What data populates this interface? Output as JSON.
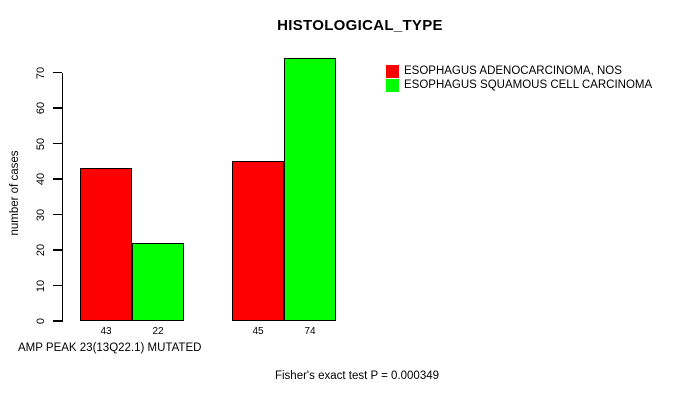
{
  "page": {
    "background": "#FFFFFF",
    "text_color": "#000000"
  },
  "chart_data": {
    "type": "bar",
    "title": "HISTOLOGICAL_TYPE",
    "ylabel": "number of cases",
    "xlabel": "AMP PEAK 23(13Q22.1) MUTATED",
    "annotation": "Fisher's exact test P = 0.000349",
    "grid": false,
    "legend_position": "top-right-outside",
    "ylim": [
      0,
      70
    ],
    "yticks": [
      0,
      10,
      20,
      30,
      40,
      50,
      60,
      70
    ],
    "categories": [
      "",
      ""
    ],
    "series": [
      {
        "name": "ESOPHAGUS ADENOCARCINOMA, NOS",
        "color": "#FF0000",
        "values": [
          43,
          45
        ]
      },
      {
        "name": "ESOPHAGUS SQUAMOUS CELL CARCINOMA",
        "color": "#00FF00",
        "values": [
          22,
          74
        ]
      }
    ],
    "show_bar_values": true,
    "axis_color": "#000000"
  }
}
